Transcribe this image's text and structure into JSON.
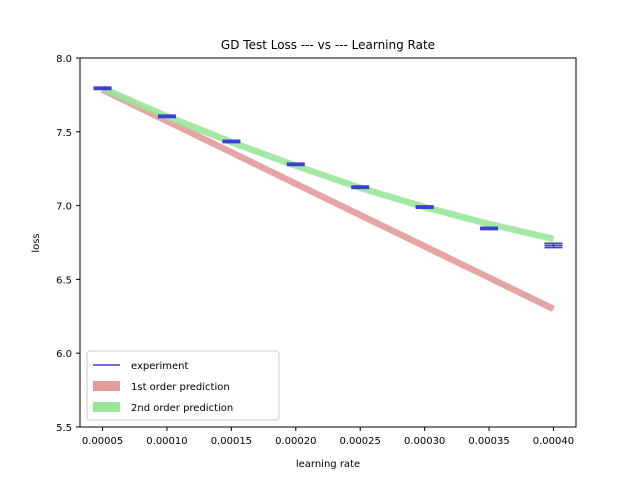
{
  "chart_data": {
    "type": "line",
    "title": "GD Test Loss --- vs --- Learning Rate",
    "xlabel": "learning rate",
    "ylabel": "loss",
    "xlim": [
      3.25e-05,
      0.0004175
    ],
    "ylim": [
      5.5,
      8.0
    ],
    "xticks": [
      5e-05,
      0.0001,
      0.00015,
      0.0002,
      0.00025,
      0.0003,
      0.00035,
      0.0004
    ],
    "xtick_labels": [
      "0.00005",
      "0.00010",
      "0.00015",
      "0.00020",
      "0.00025",
      "0.00030",
      "0.00035",
      "0.00040"
    ],
    "yticks": [
      5.5,
      6.0,
      6.5,
      7.0,
      7.5,
      8.0
    ],
    "ytick_labels": [
      "5.5",
      "6.0",
      "6.5",
      "7.0",
      "7.5",
      "8.0"
    ],
    "grid": false,
    "legend_position": "lower-left",
    "x": [
      5e-05,
      0.0001,
      0.00015,
      0.0002,
      0.00025,
      0.0003,
      0.00035,
      0.0004
    ],
    "series": [
      {
        "name": "experiment",
        "style": "errorbar",
        "color": "#3f3fcf",
        "values": [
          7.795,
          7.605,
          7.435,
          7.28,
          7.125,
          6.99,
          6.845,
          6.73
        ],
        "errors": [
          0.008,
          0.008,
          0.008,
          0.008,
          0.008,
          0.008,
          0.008,
          0.015
        ]
      },
      {
        "name": "1st order prediction",
        "style": "band",
        "color": "#e39b9b",
        "values": [
          7.785,
          7.573,
          7.361,
          7.148,
          6.936,
          6.724,
          6.512,
          6.3
        ]
      },
      {
        "name": "2nd order prediction",
        "style": "band",
        "color": "#99e599",
        "values": [
          7.795,
          7.605,
          7.43,
          7.27,
          7.12,
          6.99,
          6.875,
          6.775
        ]
      }
    ]
  }
}
